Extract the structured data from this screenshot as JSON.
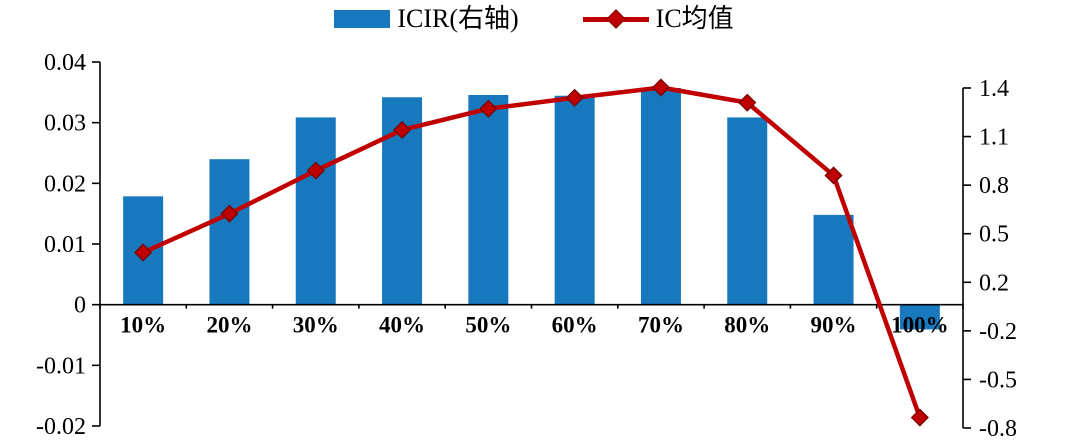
{
  "legend": {
    "bar_label": "ICIR(右轴)",
    "line_label": "IC均值"
  },
  "colors": {
    "bar": "#1878BE",
    "line": "#C00000",
    "marker_edge": "#7F0000",
    "axis": "#000000"
  },
  "chart_data": {
    "type": "bar",
    "subtype": "combo-bar-line",
    "title": "",
    "xlabel": "",
    "ylabel": "",
    "grid": false,
    "legend_position": "top",
    "categories": [
      "10%",
      "20%",
      "30%",
      "40%",
      "50%",
      "60%",
      "70%",
      "80%",
      "90%",
      "100%"
    ],
    "series": [
      {
        "name": "ICIR(右轴)",
        "type": "bar",
        "axis": "right",
        "values": [
          0.7,
          0.94,
          1.21,
          1.34,
          1.355,
          1.35,
          1.4,
          1.21,
          0.58,
          -0.16
        ]
      },
      {
        "name": "IC均值",
        "type": "line",
        "axis": "left",
        "values": [
          0.0086,
          0.015,
          0.0221,
          0.0288,
          0.0323,
          0.0341,
          0.0358,
          0.0333,
          0.0213,
          -0.0186
        ]
      }
    ],
    "left_axis": {
      "min": -0.02,
      "max": 0.04,
      "ticks": [
        "0.04",
        "0.03",
        "0.02",
        "0.01",
        "0",
        "-0.01",
        "-0.02"
      ]
    },
    "right_axis": {
      "max": 1.4,
      "ticks": [
        "1.4",
        "1.1",
        "0.8",
        "0.5",
        "0.2",
        "-0.2",
        "-0.5",
        "-0.8"
      ]
    }
  }
}
